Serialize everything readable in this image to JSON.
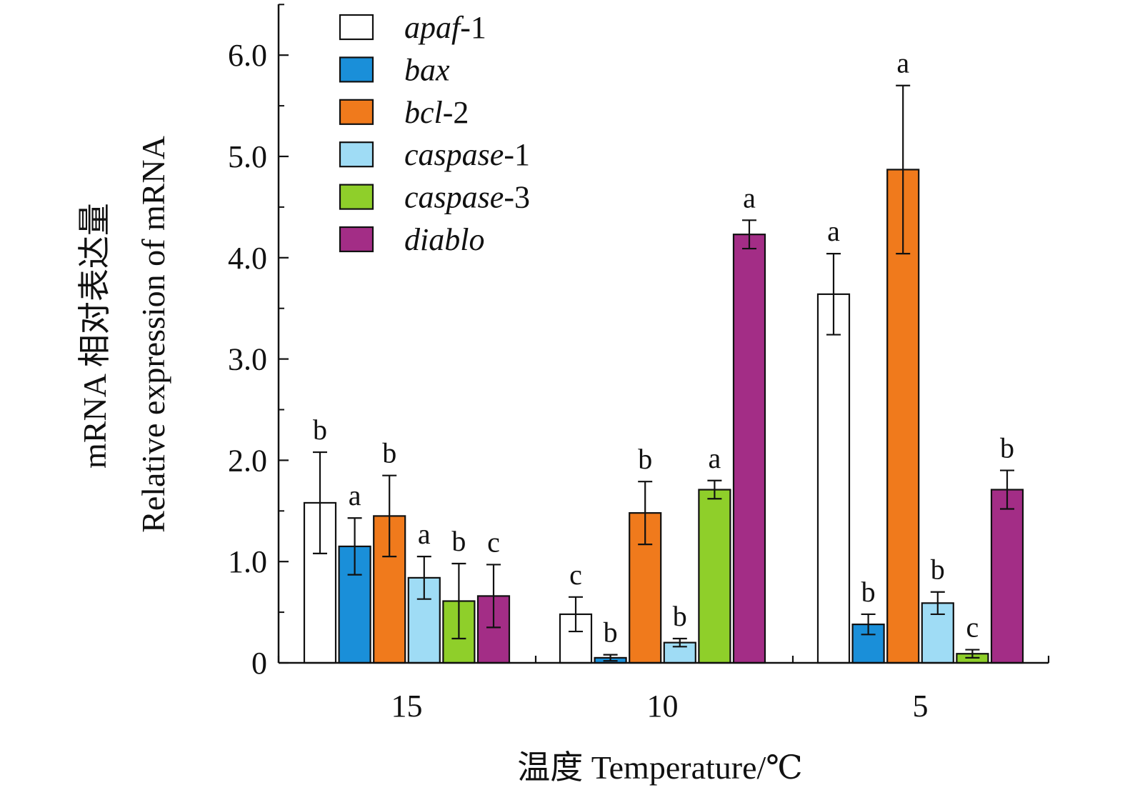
{
  "chart_data": {
    "type": "bar",
    "categories": [
      "15",
      "10",
      "5"
    ],
    "series": [
      {
        "name": "apaf",
        "suffix": "-1",
        "color": "#ffffff",
        "values": [
          1.58,
          0.48,
          3.64
        ],
        "errors": [
          0.5,
          0.17,
          0.4
        ],
        "letters": [
          "b",
          "c",
          "a"
        ]
      },
      {
        "name": "bax",
        "suffix": "",
        "color": "#1a8fd9",
        "values": [
          1.15,
          0.05,
          0.38
        ],
        "errors": [
          0.28,
          0.03,
          0.1
        ],
        "letters": [
          "a",
          "b",
          "b"
        ]
      },
      {
        "name": "bcl",
        "suffix": "-2",
        "color": "#f07a1c",
        "values": [
          1.45,
          1.48,
          4.87
        ],
        "errors": [
          0.4,
          0.31,
          0.83
        ],
        "letters": [
          "b",
          "b",
          "a"
        ]
      },
      {
        "name": "caspase",
        "suffix": "-1",
        "color": "#9fdcf5",
        "values": [
          0.84,
          0.2,
          0.59
        ],
        "errors": [
          0.21,
          0.04,
          0.11
        ],
        "letters": [
          "a",
          "b",
          "b"
        ]
      },
      {
        "name": "caspase",
        "suffix": "-3",
        "color": "#8fcf2a",
        "values": [
          0.61,
          1.71,
          0.09
        ],
        "errors": [
          0.37,
          0.09,
          0.04
        ],
        "letters": [
          "b",
          "a",
          "c"
        ]
      },
      {
        "name": "diablo",
        "suffix": "",
        "color": "#a32d86",
        "values": [
          0.66,
          4.23,
          1.71
        ],
        "errors": [
          0.31,
          0.14,
          0.19
        ],
        "letters": [
          "c",
          "a",
          "b"
        ]
      }
    ],
    "yticks": [
      0,
      1.0,
      2.0,
      3.0,
      4.0,
      5.0,
      6.0
    ],
    "ytick_labels": [
      "0",
      "1.0",
      "2.0",
      "3.0",
      "4.0",
      "5.0",
      "6.0"
    ],
    "ylim": [
      0,
      6.5
    ],
    "minor_step": 0.5,
    "xlabel": "温度 Temperature/℃",
    "ylabel_line1": "mRNA 相对表达量",
    "ylabel_line2": "Relative expression of mRNA",
    "legend_position": "top-left",
    "grid": false
  }
}
